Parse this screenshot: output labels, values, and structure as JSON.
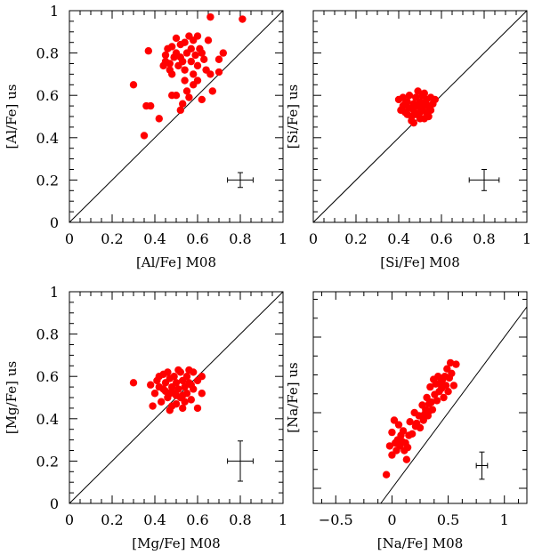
{
  "chart_data": [
    {
      "type": "scatter",
      "xlabel": "[Al/Fe] M08",
      "ylabel": "[Al/Fe] us",
      "xlim": [
        0,
        1
      ],
      "ylim": [
        0,
        1
      ],
      "x_ticks": [
        "0",
        "0.2",
        "0.4",
        "0.6",
        "0.8",
        "1"
      ],
      "y_ticks": [
        "0",
        "0.2",
        "0.4",
        "0.6",
        "0.8",
        "1"
      ],
      "show_x_tick_labels": true,
      "show_y_tick_labels": true,
      "one_to_one_line": true,
      "error_bar": {
        "x": 0.8,
        "y": 0.2,
        "xerr": 0.06,
        "yerr": 0.035
      },
      "points": [
        [
          0.66,
          0.97
        ],
        [
          0.81,
          0.96
        ],
        [
          0.3,
          0.65
        ],
        [
          0.37,
          0.81
        ],
        [
          0.36,
          0.55
        ],
        [
          0.38,
          0.55
        ],
        [
          0.35,
          0.41
        ],
        [
          0.42,
          0.49
        ],
        [
          0.45,
          0.76
        ],
        [
          0.45,
          0.79
        ],
        [
          0.46,
          0.82
        ],
        [
          0.47,
          0.75
        ],
        [
          0.48,
          0.83
        ],
        [
          0.48,
          0.7
        ],
        [
          0.49,
          0.78
        ],
        [
          0.5,
          0.87
        ],
        [
          0.5,
          0.8
        ],
        [
          0.51,
          0.74
        ],
        [
          0.52,
          0.84
        ],
        [
          0.52,
          0.78
        ],
        [
          0.53,
          0.76
        ],
        [
          0.54,
          0.85
        ],
        [
          0.54,
          0.72
        ],
        [
          0.55,
          0.8
        ],
        [
          0.56,
          0.88
        ],
        [
          0.57,
          0.82
        ],
        [
          0.57,
          0.76
        ],
        [
          0.58,
          0.86
        ],
        [
          0.58,
          0.7
        ],
        [
          0.59,
          0.79
        ],
        [
          0.6,
          0.88
        ],
        [
          0.6,
          0.74
        ],
        [
          0.61,
          0.82
        ],
        [
          0.62,
          0.8
        ],
        [
          0.63,
          0.77
        ],
        [
          0.64,
          0.72
        ],
        [
          0.65,
          0.86
        ],
        [
          0.66,
          0.7
        ],
        [
          0.67,
          0.62
        ],
        [
          0.7,
          0.77
        ],
        [
          0.7,
          0.71
        ],
        [
          0.72,
          0.8
        ],
        [
          0.58,
          0.65
        ],
        [
          0.55,
          0.62
        ],
        [
          0.5,
          0.6
        ],
        [
          0.48,
          0.6
        ],
        [
          0.52,
          0.53
        ],
        [
          0.53,
          0.56
        ],
        [
          0.56,
          0.59
        ],
        [
          0.62,
          0.58
        ],
        [
          0.6,
          0.67
        ],
        [
          0.47,
          0.72
        ],
        [
          0.44,
          0.74
        ],
        [
          0.54,
          0.67
        ]
      ]
    },
    {
      "type": "scatter",
      "xlabel": "[Si/Fe] M08",
      "ylabel": "[Si/Fe] us",
      "xlim": [
        0,
        1
      ],
      "ylim": [
        0,
        1
      ],
      "x_ticks": [
        "0",
        "0.2",
        "0.4",
        "0.6",
        "0.8",
        "1"
      ],
      "y_ticks": [
        "0",
        "0.2",
        "0.4",
        "0.6",
        "0.8",
        "1"
      ],
      "show_x_tick_labels": true,
      "show_y_tick_labels": false,
      "one_to_one_line": true,
      "error_bar": {
        "x": 0.8,
        "y": 0.2,
        "xerr": 0.07,
        "yerr": 0.05
      },
      "points": [
        [
          0.4,
          0.58
        ],
        [
          0.42,
          0.55
        ],
        [
          0.43,
          0.52
        ],
        [
          0.44,
          0.57
        ],
        [
          0.45,
          0.6
        ],
        [
          0.45,
          0.54
        ],
        [
          0.46,
          0.5
        ],
        [
          0.47,
          0.56
        ],
        [
          0.47,
          0.53
        ],
        [
          0.48,
          0.59
        ],
        [
          0.48,
          0.51
        ],
        [
          0.49,
          0.55
        ],
        [
          0.5,
          0.57
        ],
        [
          0.5,
          0.52
        ],
        [
          0.51,
          0.6
        ],
        [
          0.51,
          0.54
        ],
        [
          0.52,
          0.49
        ],
        [
          0.52,
          0.56
        ],
        [
          0.53,
          0.58
        ],
        [
          0.53,
          0.52
        ],
        [
          0.54,
          0.55
        ],
        [
          0.55,
          0.59
        ],
        [
          0.55,
          0.53
        ],
        [
          0.56,
          0.56
        ],
        [
          0.46,
          0.48
        ],
        [
          0.44,
          0.51
        ],
        [
          0.43,
          0.56
        ],
        [
          0.41,
          0.53
        ],
        [
          0.49,
          0.62
        ],
        [
          0.5,
          0.49
        ],
        [
          0.47,
          0.47
        ],
        [
          0.52,
          0.61
        ],
        [
          0.54,
          0.5
        ],
        [
          0.57,
          0.58
        ],
        [
          0.42,
          0.59
        ]
      ]
    },
    {
      "type": "scatter",
      "xlabel": "[Mg/Fe] M08",
      "ylabel": "[Mg/Fe] us",
      "xlim": [
        0,
        1
      ],
      "ylim": [
        0,
        1
      ],
      "x_ticks": [
        "0",
        "0.2",
        "0.4",
        "0.6",
        "0.8",
        "1"
      ],
      "y_ticks": [
        "0",
        "0.2",
        "0.4",
        "0.6",
        "0.8",
        "1"
      ],
      "show_x_tick_labels": true,
      "show_y_tick_labels": true,
      "one_to_one_line": true,
      "error_bar": {
        "x": 0.8,
        "y": 0.2,
        "xerr": 0.06,
        "yerr": 0.095
      },
      "points": [
        [
          0.3,
          0.57
        ],
        [
          0.38,
          0.56
        ],
        [
          0.4,
          0.52
        ],
        [
          0.41,
          0.58
        ],
        [
          0.42,
          0.55
        ],
        [
          0.43,
          0.48
        ],
        [
          0.44,
          0.61
        ],
        [
          0.45,
          0.53
        ],
        [
          0.45,
          0.57
        ],
        [
          0.46,
          0.5
        ],
        [
          0.47,
          0.59
        ],
        [
          0.47,
          0.44
        ],
        [
          0.48,
          0.55
        ],
        [
          0.49,
          0.52
        ],
        [
          0.49,
          0.6
        ],
        [
          0.5,
          0.57
        ],
        [
          0.5,
          0.47
        ],
        [
          0.51,
          0.54
        ],
        [
          0.52,
          0.62
        ],
        [
          0.52,
          0.5
        ],
        [
          0.53,
          0.58
        ],
        [
          0.53,
          0.45
        ],
        [
          0.54,
          0.55
        ],
        [
          0.55,
          0.6
        ],
        [
          0.55,
          0.52
        ],
        [
          0.56,
          0.57
        ],
        [
          0.57,
          0.49
        ],
        [
          0.58,
          0.62
        ],
        [
          0.58,
          0.54
        ],
        [
          0.6,
          0.58
        ],
        [
          0.6,
          0.45
        ],
        [
          0.62,
          0.52
        ],
        [
          0.62,
          0.6
        ],
        [
          0.44,
          0.54
        ],
        [
          0.46,
          0.62
        ],
        [
          0.48,
          0.46
        ],
        [
          0.51,
          0.63
        ],
        [
          0.54,
          0.48
        ],
        [
          0.56,
          0.63
        ],
        [
          0.42,
          0.6
        ],
        [
          0.39,
          0.46
        ],
        [
          0.47,
          0.52
        ],
        [
          0.5,
          0.51
        ],
        [
          0.53,
          0.51
        ],
        [
          0.57,
          0.56
        ]
      ]
    },
    {
      "type": "scatter",
      "xlabel": "[Na/Fe] M08",
      "ylabel": "[Na/Fe] us",
      "xlim": [
        -0.7,
        1.2
      ],
      "ylim": [
        -0.1,
        1.3
      ],
      "x_ticks": [
        "−0.5",
        "0",
        "0.5",
        "1"
      ],
      "x_tick_values": [
        -0.5,
        0,
        0.5,
        1
      ],
      "y_tick_values": [
        0,
        0.5,
        1
      ],
      "show_x_tick_labels": true,
      "show_y_tick_labels": false,
      "one_to_one_line": true,
      "error_bar": {
        "x": 0.8,
        "y": 0.15,
        "xerr": 0.05,
        "yerr": 0.09
      },
      "points": [
        [
          -0.05,
          0.09
        ],
        [
          -0.02,
          0.28
        ],
        [
          0.0,
          0.37
        ],
        [
          0.0,
          0.22
        ],
        [
          0.02,
          0.45
        ],
        [
          0.03,
          0.3
        ],
        [
          0.04,
          0.25
        ],
        [
          0.05,
          0.32
        ],
        [
          0.06,
          0.42
        ],
        [
          0.07,
          0.28
        ],
        [
          0.08,
          0.35
        ],
        [
          0.09,
          0.31
        ],
        [
          0.1,
          0.38
        ],
        [
          0.12,
          0.3
        ],
        [
          0.13,
          0.19
        ],
        [
          0.14,
          0.27
        ],
        [
          0.16,
          0.44
        ],
        [
          0.18,
          0.36
        ],
        [
          0.2,
          0.5
        ],
        [
          0.22,
          0.43
        ],
        [
          0.24,
          0.48
        ],
        [
          0.25,
          0.4
        ],
        [
          0.27,
          0.55
        ],
        [
          0.28,
          0.45
        ],
        [
          0.3,
          0.52
        ],
        [
          0.31,
          0.6
        ],
        [
          0.32,
          0.48
        ],
        [
          0.33,
          0.56
        ],
        [
          0.34,
          0.67
        ],
        [
          0.35,
          0.57
        ],
        [
          0.36,
          0.52
        ],
        [
          0.37,
          0.72
        ],
        [
          0.38,
          0.62
        ],
        [
          0.39,
          0.69
        ],
        [
          0.4,
          0.58
        ],
        [
          0.41,
          0.74
        ],
        [
          0.42,
          0.64
        ],
        [
          0.43,
          0.7
        ],
        [
          0.44,
          0.66
        ],
        [
          0.45,
          0.72
        ],
        [
          0.46,
          0.6
        ],
        [
          0.47,
          0.74
        ],
        [
          0.48,
          0.68
        ],
        [
          0.49,
          0.79
        ],
        [
          0.5,
          0.64
        ],
        [
          0.51,
          0.73
        ],
        [
          0.52,
          0.83
        ],
        [
          0.53,
          0.76
        ],
        [
          0.55,
          0.68
        ],
        [
          0.57,
          0.82
        ],
        [
          0.33,
          0.51
        ],
        [
          0.29,
          0.49
        ],
        [
          0.15,
          0.35
        ],
        [
          0.21,
          0.41
        ],
        [
          0.11,
          0.25
        ]
      ]
    }
  ]
}
